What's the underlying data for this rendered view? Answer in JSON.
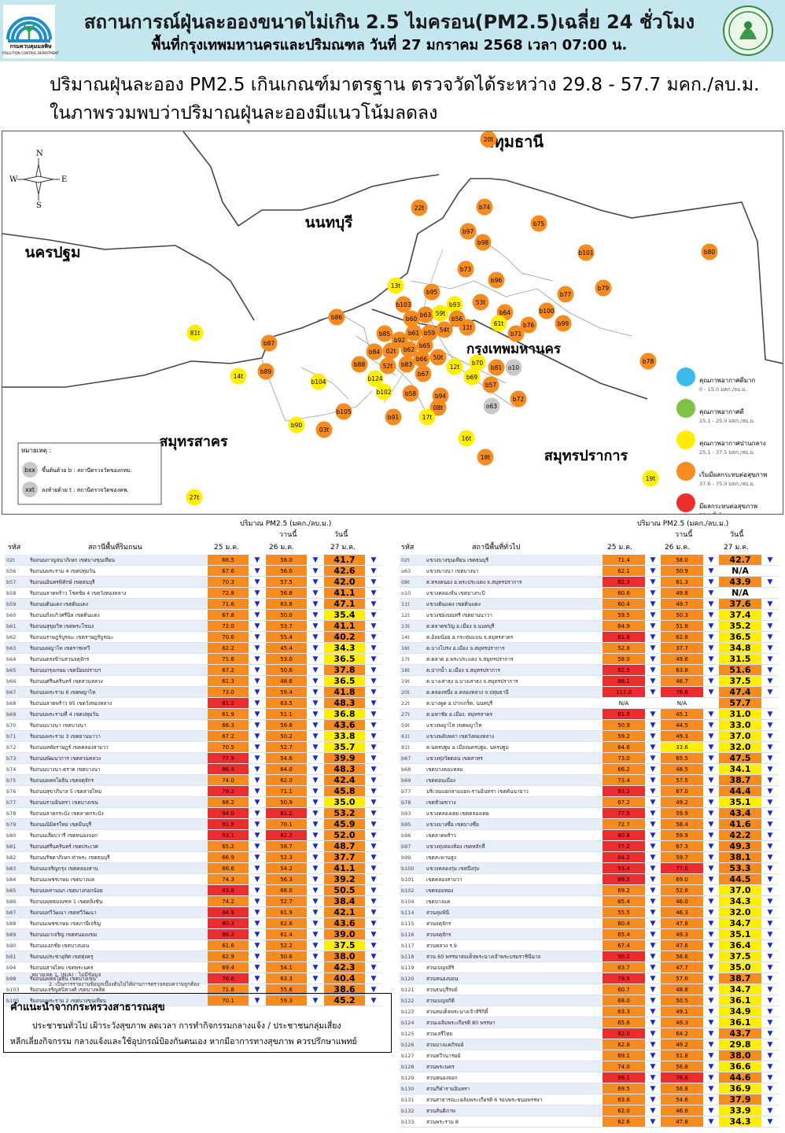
{
  "header": {
    "title": "สถานการณ์ฝุ่นละอองขนาดไม่เกิน 2.5 ไมครอน(PM2.5)เฉลี่ย 24 ชั่วโมง",
    "subtitle": "พื้นที่กรุงเทพมหานครและปริมณฑล วันที่ 27 มกราคม 2568 เวลา 07:00 น.",
    "dept_name": "กรมควบคุมมลพิษ",
    "dept_name_en": "POLLUTION CONTROL DEPARTMENT"
  },
  "summary": {
    "line1": "ปริมาณฝุ่นละออง PM2.5 เกินเกณฑ์มาตรฐาน ตรวจวัดได้ระหว่าง 29.8 - 57.7 มคก./ลบ.ม.",
    "line2": "ในภาพรวมพบว่าปริมาณฝุ่นละอองมีแนวโน้มลดลง"
  },
  "map": {
    "compass": {
      "n": "N",
      "s": "S",
      "e": "E",
      "w": "W"
    },
    "provinces": [
      {
        "name": "ปทุมธานี"
      },
      {
        "name": "นนทบุรี"
      },
      {
        "name": "นครปฐม"
      },
      {
        "name": "กรุงเทพมหานคร"
      },
      {
        "name": "สมุทรสาคร"
      },
      {
        "name": "สมุทรปราการ"
      }
    ],
    "stations": [
      {
        "code": "20t",
        "level": "o"
      },
      {
        "code": "22t",
        "level": "o"
      },
      {
        "code": "b74",
        "level": "o"
      },
      {
        "code": "b75",
        "level": "o"
      },
      {
        "code": "b97",
        "level": "o"
      },
      {
        "code": "b98",
        "level": "o"
      },
      {
        "code": "b101",
        "level": "o"
      },
      {
        "code": "b80",
        "level": "o"
      },
      {
        "code": "b73",
        "level": "o"
      },
      {
        "code": "b96",
        "level": "o"
      },
      {
        "code": "b79",
        "level": "o"
      },
      {
        "code": "b77",
        "level": "o"
      },
      {
        "code": "13t",
        "level": "y"
      },
      {
        "code": "b95",
        "level": "o"
      },
      {
        "code": "b103",
        "level": "o"
      },
      {
        "code": "b93",
        "level": "y"
      },
      {
        "code": "53t",
        "level": "o"
      },
      {
        "code": "b64",
        "level": "o"
      },
      {
        "code": "b100",
        "level": "o"
      },
      {
        "code": "b86",
        "level": "o"
      },
      {
        "code": "b60",
        "level": "o"
      },
      {
        "code": "b63",
        "level": "o"
      },
      {
        "code": "59t",
        "level": "y"
      },
      {
        "code": "b56",
        "level": "o"
      },
      {
        "code": "61t",
        "level": "y"
      },
      {
        "code": "b76",
        "level": "o"
      },
      {
        "code": "b99",
        "level": "o"
      },
      {
        "code": "81t",
        "level": "y"
      },
      {
        "code": "b85",
        "level": "o"
      },
      {
        "code": "b61",
        "level": "o"
      },
      {
        "code": "b59",
        "level": "o"
      },
      {
        "code": "54t",
        "level": "o"
      },
      {
        "code": "11t",
        "level": "o"
      },
      {
        "code": "b71",
        "level": "o"
      },
      {
        "code": "b92",
        "level": "o"
      },
      {
        "code": "b87",
        "level": "o"
      },
      {
        "code": "b65",
        "level": "o"
      },
      {
        "code": "b84",
        "level": "o"
      },
      {
        "code": "02t",
        "level": "o"
      },
      {
        "code": "b62",
        "level": "o"
      },
      {
        "code": "50t",
        "level": "o"
      },
      {
        "code": "b66",
        "level": "o"
      },
      {
        "code": "b70",
        "level": "y"
      },
      {
        "code": "b78",
        "level": "o"
      },
      {
        "code": "b89",
        "level": "o"
      },
      {
        "code": "b88",
        "level": "o"
      },
      {
        "code": "52t",
        "level": "o"
      },
      {
        "code": "b83",
        "level": "o"
      },
      {
        "code": "b67",
        "level": "o"
      },
      {
        "code": "12t",
        "level": "y"
      },
      {
        "code": "b81",
        "level": "o"
      },
      {
        "code": "o10",
        "level": "g"
      },
      {
        "code": "14t",
        "level": "y"
      },
      {
        "code": "b104",
        "level": "y"
      },
      {
        "code": "b124",
        "level": "y"
      },
      {
        "code": "b69",
        "level": "y"
      },
      {
        "code": "b57",
        "level": "o"
      },
      {
        "code": "b102",
        "level": "y"
      },
      {
        "code": "b58",
        "level": "o"
      },
      {
        "code": "b94",
        "level": "o"
      },
      {
        "code": "b72",
        "level": "o"
      },
      {
        "code": "08t",
        "level": "o"
      },
      {
        "code": "o63",
        "level": "g"
      },
      {
        "code": "b105",
        "level": "o"
      },
      {
        "code": "b91",
        "level": "o"
      },
      {
        "code": "17t",
        "level": "y"
      },
      {
        "code": "b90",
        "level": "y"
      },
      {
        "code": "03t",
        "level": "o"
      },
      {
        "code": "16t",
        "level": "y"
      },
      {
        "code": "18t",
        "level": "o"
      },
      {
        "code": "19t",
        "level": "y"
      },
      {
        "code": "27t",
        "level": "y"
      }
    ],
    "legend": [
      {
        "label": "คุณภาพอากาศดีมาก",
        "range": "0 - 15.0 มคก./ลบ.ม.",
        "color": "#3bbbea"
      },
      {
        "label": "คุณภาพอากาศดี",
        "range": "15.1 - 25.0 มคก./ลบ.ม.",
        "color": "#7dc242"
      },
      {
        "label": "คุณภาพอากาศปานกลาง",
        "range": "25.1 - 37.5 มคก./ลบ.ม.",
        "color": "#ffee00"
      },
      {
        "label": "เริ่มมีผลกระทบต่อสุขภาพ",
        "range": "37.6 - 75.0 มคก./ลบ.ม.",
        "color": "#f68c1f"
      },
      {
        "label": "มีผลกระทบต่อสุขภาพ",
        "range": "75.1 ขึ้นไป",
        "color": "#ec2d2d"
      }
    ],
    "remark": {
      "title": "หมายเหตุ :",
      "b_badge": "bxx",
      "b_text": "ขึ้นต้นด้วย b : สถานีตรวจวัดของกทม.",
      "t_badge": "xxt",
      "t_text": "ลงท้ายด้วย t : สถานีตรวจวัดของคพ."
    }
  },
  "tables": {
    "unit_label": "ปริมาณ PM2.5 (มคก./ลบ.ม.)",
    "today_word": "วันนี้",
    "yesterday_word": "วานนี้",
    "code_header": "รหัส",
    "left_header": "สถานีพื้นที่ริมถนน",
    "right_header": "สถานีพื้นที่ทั่วไป",
    "date1": "25 ม.ค.",
    "date2": "26 ม.ค.",
    "date3": "27 ม.ค.",
    "left_rows": [
      [
        "02t",
        "ริมถนนกาญจนาภิเษก เขตบางขุนเทียน",
        "68.5",
        "58.0",
        "41.7"
      ],
      [
        "b56",
        "ริมถนนพระราม 4 เขตปทุมวัน",
        "67.6",
        "56.0",
        "42.6"
      ],
      [
        "b57",
        "ริมถนนอินทรพิทักษ์ เขตธนบุรี",
        "70.3",
        "57.5",
        "42.0"
      ],
      [
        "b58",
        "ริมถนนลาดพร้าว โชคชัย 4 เขตวังทองหลาง",
        "72.8",
        "56.8",
        "41.1"
      ],
      [
        "b59",
        "ริมถนนดินแดง เขตดินแดง",
        "71.6",
        "63.8",
        "47.1"
      ],
      [
        "b60",
        "ริมถนนกิ่งแก้วศรีนิล เขตดินแดง",
        "67.8",
        "50.0",
        "35.4"
      ],
      [
        "b61",
        "ริมถนนสุขุมวิท เขตพระโขนง",
        "72.0",
        "53.7",
        "41.1"
      ],
      [
        "b62",
        "ริมถนนราษฎร์บูรณะ เขตราษฎร์บูรณะ",
        "70.6",
        "55.4",
        "40.2"
      ],
      [
        "b63",
        "ริมถนนพญาไท เขตราชเทวี",
        "62.2",
        "45.4",
        "34.3"
      ],
      [
        "b64",
        "ริมถนนตรงข้ามสวนจตุจักร",
        "71.6",
        "53.0",
        "36.5"
      ],
      [
        "b65",
        "ริมถนนกรุงเกษม เขตป้อมปราบฯ",
        "67.2",
        "50.6",
        "37.8"
      ],
      [
        "b66",
        "ริมถนนศรีนครินทร์ เขตสวนหลวง",
        "61.3",
        "48.6",
        "36.5"
      ],
      [
        "b67",
        "ริมถนนพระราม 6 เขตพญาไท",
        "73.0",
        "59.4",
        "41.8"
      ],
      [
        "b68",
        "ริมถนนลาดพร้าว 95 เขตวังทองหลาง",
        "81.2",
        "63.5",
        "48.3"
      ],
      [
        "b69",
        "ริมถนนพระรามที่ 4 เขตปทุมวัน",
        "61.9",
        "51.1",
        "36.8"
      ],
      [
        "b70",
        "ริมถนนบางนา เขตบางนา",
        "66.3",
        "56.6",
        "43.6"
      ],
      [
        "b71",
        "ริมถนนพระราม 3 เขตยานนาวา",
        "67.2",
        "50.2",
        "33.8"
      ],
      [
        "b72",
        "ริมถนนหทัยราษฎร์ เขตคลองสามวา",
        "70.5",
        "52.7",
        "35.7"
      ],
      [
        "b73",
        "ริมถนนพัฒนาการ เขตสวนหลวง",
        "77.9",
        "54.6",
        "39.9"
      ],
      [
        "b74",
        "ริมถนนบางนา-ตราด เขตบางนา",
        "86.4",
        "64.0",
        "48.3"
      ],
      [
        "b75",
        "ริมถนนพหลโยธิน เขตจตุจักร",
        "74.0",
        "62.0",
        "42.4"
      ],
      [
        "b76",
        "ริมถนนสุขาภิบาล 5 เขตสายไหม",
        "79.2",
        "71.1",
        "45.8"
      ],
      [
        "b77",
        "ริมถนนรามอินทรา เขตบางเขน",
        "68.2",
        "50.9",
        "35.0"
      ],
      [
        "b78",
        "ริมถนนลาดกระบัง เขตลาดกระบัง",
        "94.0",
        "81.2",
        "53.2"
      ],
      [
        "b79",
        "ริมถนนนิมิตรใหม่ เขตมีนบุรี",
        "91.9",
        "70.1",
        "45.9"
      ],
      [
        "b80",
        "ริมถนนเลียบวารี เขตหนองจอก",
        "93.1",
        "82.2",
        "52.0"
      ],
      [
        "b81",
        "ริมถนนศรีนครินทร์ เขตประเวศ",
        "65.2",
        "58.7",
        "48.7"
      ],
      [
        "b82",
        "ริมถนนรัชดาภิเษก-ท่าพระ เขตธนบุรี",
        "66.9",
        "52.3",
        "37.7"
      ],
      [
        "b83",
        "ริมถนนเจริญกรุง เขตคลองสาน",
        "66.6",
        "54.2",
        "41.1"
      ],
      [
        "b84",
        "ริมถนนเพชรเกษม เขตบางแค",
        "74.3",
        "56.3",
        "39.2"
      ],
      [
        "b85",
        "ริมถนนพรานนก เขตบางกอกน้อย",
        "83.8",
        "66.0",
        "50.5"
      ],
      [
        "b86",
        "ริมถนนพุทธมณฑล 1 เขตตลิ่งชัน",
        "74.2",
        "52.7",
        "38.4"
      ],
      [
        "b87",
        "ริมถนนทวีวัฒนา เขตทวีวัฒนา",
        "84.9",
        "61.9",
        "42.1"
      ],
      [
        "b88",
        "ริมถนนเพชรเกษม เขตภาษีเจริญ",
        "80.3",
        "62.6",
        "43.6"
      ],
      [
        "b89",
        "ริมถนนมาเจริญ เขตหนองแขม",
        "86.2",
        "61.4",
        "39.0"
      ],
      [
        "b90",
        "ริมถนนเอกชัย เขตบางบอน",
        "61.6",
        "52.2",
        "37.5"
      ],
      [
        "b91",
        "ริมถนนประชาอุทิศ เขตทุ่งครุ",
        "62.9",
        "50.6",
        "38.0"
      ],
      [
        "b94",
        "ริมถนนสายไหม เขตพระนคร",
        "69.4",
        "54.1",
        "42.3"
      ],
      [
        "b98",
        "ริมถนนพหลโยธิน เขตบางเขน",
        "76.6",
        "63.3",
        "40.4"
      ],
      [
        "b103",
        "ริมถนนเจริญสนิทวงศ์ เขตบางพลัด",
        "71.8",
        "55.6",
        "38.6"
      ],
      [
        "b105",
        "ริมถนนพระราม 2 เขตบางขุนเทียน",
        "70.1",
        "59.3",
        "45.2"
      ]
    ],
    "right_rows": [
      [
        "02t",
        "แขวงบางขุนเทียน เขตธนบุรี",
        "71.4",
        "58.0",
        "42.7"
      ],
      [
        "o63",
        "แขวงบางนา เขตบางนา",
        "62.1",
        "50.9",
        "N/A"
      ],
      [
        "08t",
        "ต.ทรงคนอง อ.พระประแดง จ.สมุทรปราการ",
        "82.3",
        "61.3",
        "43.9"
      ],
      [
        "o10",
        "แขวงคลองจั่น เขตบางกะปิ",
        "60.6",
        "49.8",
        "N/A"
      ],
      [
        "11t",
        "แขวงดินแดง เขตดินแดง",
        "60.4",
        "49.7",
        "37.6"
      ],
      [
        "12t",
        "แขวงช่องนนทรี เขตยานนาวา",
        "59.5",
        "50.3",
        "37.4"
      ],
      [
        "13t",
        "ต.ตลาดขวัญ อ.เมือง จ.นนทบุรี",
        "64.9",
        "51.8",
        "35.2"
      ],
      [
        "14t",
        "ต.อ้อมน้อย อ.กระทุ่มแบน จ.สมุทรสาคร",
        "81.8",
        "62.8",
        "36.5"
      ],
      [
        "16t",
        "ต.บางโปรง อ.เมือง จ.สมุทรปราการ",
        "52.8",
        "37.7",
        "34.8"
      ],
      [
        "17t",
        "ต.ตลาด อ.พระประแดง จ.สมุทรปราการ",
        "58.0",
        "49.6",
        "31.5"
      ],
      [
        "18t",
        "ต.ปากน้ำ อ.เมือง จ.สมุทรปราการ",
        "82.5",
        "63.8",
        "51.6"
      ],
      [
        "19t",
        "ต.บางเสาธง อ.บางเสาธง จ.สมุทรปราการ",
        "86.1",
        "46.7",
        "37.5"
      ],
      [
        "20t",
        "ต.คลองหนึ่ง อ.คลองหลวง จ.ปทุมธานี",
        "111.0",
        "76.8",
        "47.4"
      ],
      [
        "22t",
        "ต.บางพูด อ.ปากเกร็ด, นนทบุรี",
        "N/A",
        "N/A",
        "57.7"
      ],
      [
        "27t",
        "ต.มหาชัย อ.เมือง, สมุทรสาคร",
        "81.6",
        "45.1",
        "31.0"
      ],
      [
        "59t",
        "แขวงพญาไท เขตพญาไท",
        "50.9",
        "44.5",
        "33.0"
      ],
      [
        "61t",
        "แขวงพลับพลา เขตวังทองหลาง",
        "59.2",
        "49.3",
        "37.0"
      ],
      [
        "81t",
        "ต.นครปฐม อ.เมืองนครปฐม, นครปฐม",
        "64.6",
        "33.6",
        "32.0"
      ],
      [
        "b67",
        "แขวงทุ่งวัดดอน เขตสาทร",
        "73.0",
        "65.5",
        "47.5"
      ],
      [
        "b68",
        "เขตบางคอแหลม",
        "66.2",
        "48.5",
        "34.1"
      ],
      [
        "b69",
        "เขตดอนเมือง",
        "73.4",
        "57.5",
        "38.7"
      ],
      [
        "b77",
        "บริเวณแยกสามแยก-รามอินทรา เขตคันนายาว",
        "92.2",
        "67.0",
        "44.4"
      ],
      [
        "b78",
        "เขตห้วยขวาง",
        "67.2",
        "49.2",
        "35.1"
      ],
      [
        "b93",
        "แขวงคลองเตย เขตคลองเตย",
        "77.9",
        "59.9",
        "43.4"
      ],
      [
        "b95",
        "แขวงบางซื่อ เขตบางซื่อ",
        "72.7",
        "58.4",
        "41.6"
      ],
      [
        "b96",
        "เขตลาดพร้าว",
        "80.8",
        "59.9",
        "42.2"
      ],
      [
        "b97",
        "แขวงทุ่งสองห้อง เขตหลักสี่",
        "77.2",
        "67.3",
        "49.3"
      ],
      [
        "b99",
        "เขตสะพานสูง",
        "84.2",
        "59.7",
        "38.1"
      ],
      [
        "b100",
        "แขวงคลองกุ่ม เขตบึงกุ่ม",
        "93.4",
        "77.0",
        "53.3"
      ],
      [
        "b101",
        "เขตคลองสามวา",
        "89.5",
        "69.0",
        "44.5"
      ],
      [
        "b102",
        "เขตจอมทอง",
        "69.2",
        "52.6",
        "37.0"
      ],
      [
        "b104",
        "เขตบางแค",
        "65.4",
        "46.0",
        "34.3"
      ],
      [
        "b114",
        "สวนลุมพินี",
        "55.5",
        "46.3",
        "32.0"
      ],
      [
        "b115",
        "สวนจตุจักร",
        "60.4",
        "47.8",
        "34.7"
      ],
      [
        "b116",
        "สวนจตุจักร",
        "65.4",
        "49.3",
        "35.1"
      ],
      [
        "b117",
        "สวนหลวง ร.9",
        "67.4",
        "47.6",
        "36.4"
      ],
      [
        "b118",
        "สวน 60 พรรษาสมเด็จพระนางเจ้าพระบรมราชินีนาถ",
        "90.2",
        "56.6",
        "37.5"
      ],
      [
        "b119",
        "สวนเบญจสิริ",
        "63.7",
        "47.7",
        "35.0"
      ],
      [
        "b120",
        "สวนหนองบอน",
        "79.5",
        "57.6",
        "38.7"
      ],
      [
        "b121",
        "สวนธนบุรีรมย์",
        "60.7",
        "48.8",
        "34.7"
      ],
      [
        "b122",
        "สวนเบญจกิติ",
        "68.0",
        "50.5",
        "36.1"
      ],
      [
        "b123",
        "สวนสมเด็จพระนางเจ้าสิริกิติ์",
        "63.3",
        "49.1",
        "34.9"
      ],
      [
        "b124",
        "สวนเฉลิมพระเกียรติ 80 พรรษา",
        "65.6",
        "49.3",
        "36.1"
      ],
      [
        "b125",
        "สวนเสรีไทย",
        "82.0",
        "64.2",
        "43.7"
      ],
      [
        "b126",
        "สวนบางแคภิรมย์",
        "62.8",
        "49.2",
        "29.8"
      ],
      [
        "b127",
        "สวนทวีวนารมย์",
        "69.1",
        "51.8",
        "38.0"
      ],
      [
        "b128",
        "สวนพระนคร",
        "74.0",
        "56.8",
        "36.6"
      ],
      [
        "b129",
        "สวนหนองจอก",
        "96.1",
        "78.6",
        "44.6"
      ],
      [
        "b130",
        "สวนกีฬารามอินทรา",
        "69.5",
        "56.8",
        "36.9"
      ],
      [
        "b131",
        "สวนสาธารณะเฉลิมพระเกียรติ 6 รอบพระชนมพรรษา",
        "63.6",
        "54.6",
        "37.9"
      ],
      [
        "b132",
        "สวนสันติภาพ",
        "62.0",
        "46.6",
        "33.9"
      ],
      [
        "b133",
        "สวนพระราม 8",
        "62.6",
        "47.8",
        "34.3"
      ]
    ]
  },
  "notes": {
    "line1": "หมายเหตุ 1. (N/A) : ไม่มีข้อมูล",
    "line2": "2. เป็นการรายงานข้อมูลเบื้องต้นไม่ได้ผ่านการตรวจสอบความถูกต้อง"
  },
  "advice": {
    "title": "คำแนะนำจากกระทรวงสาธารณสุข",
    "line1": "ประชาชนทั่วไป เฝ้าระวังสุขภาพ ลดเวลา การทำกิจกรรมกลางแจ้ง / ประชาชนกลุ่มเสี่ยง",
    "line2": "หลีกเลี่ยงกิจกรรม กลางแจ้งและใช้อุปกรณ์ป้องกันตนเอง หากมีอาการทางสุขภาพ ควรปรึกษาแพทย์"
  }
}
